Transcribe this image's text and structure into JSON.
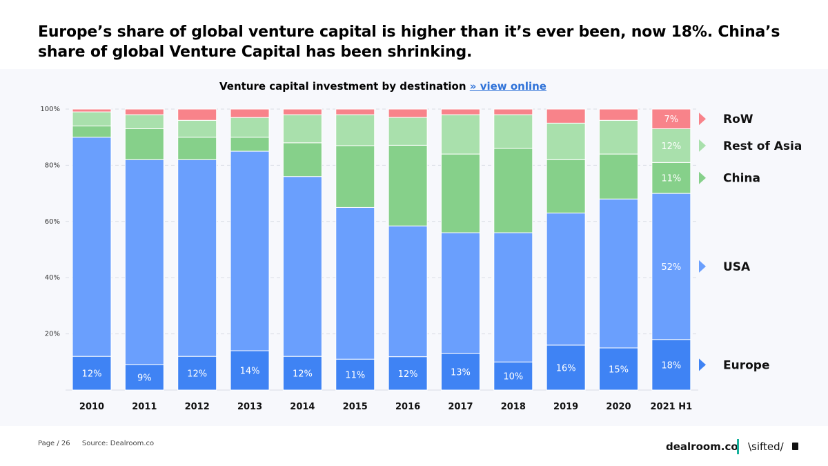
{
  "headline": "Europe’s share of global venture capital is higher than it’s ever been, now 18%. China’s share of global Venture Capital has been shrinking.",
  "subtitle": {
    "text": "Venture capital investment by destination",
    "link": "» view online"
  },
  "footer": {
    "page": "Page / 26",
    "source": "Source: Dealroom.co"
  },
  "brands": {
    "dealroom": "dealroom.co",
    "sifted": "\\sifted/"
  },
  "colors": {
    "europe": "#3f83f4",
    "usa": "#6a9ffd",
    "china": "#86d08a",
    "rest_of_asia": "#a9e0ac",
    "row": "#f8838a",
    "accent": "#17b19c",
    "link": "#2f72d8"
  },
  "chart_data": {
    "type": "bar",
    "stacked": true,
    "title": "Venture capital investment by destination",
    "xlabel": "",
    "ylabel": "",
    "ylim": [
      0,
      100
    ],
    "y_ticks": [
      "100%",
      "80%",
      "60%",
      "40%",
      "20%"
    ],
    "grid": true,
    "legend_position": "right",
    "categories": [
      "2010",
      "2011",
      "2012",
      "2013",
      "2014",
      "2015",
      "2016",
      "2017",
      "2018",
      "2019",
      "2020",
      "2021 H1"
    ],
    "series": [
      {
        "name": "Europe",
        "color": "#3f83f4",
        "values": [
          12,
          9,
          12,
          14,
          12,
          11,
          12,
          13,
          10,
          16,
          15,
          18
        ],
        "labels": [
          "12%",
          "9%",
          "12%",
          "14%",
          "12%",
          "11%",
          "12%",
          "13%",
          "10%",
          "16%",
          "15%",
          "18%"
        ]
      },
      {
        "name": "USA",
        "color": "#6a9ffd",
        "values": [
          78,
          73,
          70,
          71,
          64,
          54,
          47,
          43,
          46,
          47,
          53,
          52
        ],
        "labels": [
          "",
          "",
          "",
          "",
          "",
          "",
          "",
          "",
          "",
          "",
          "",
          "52%"
        ]
      },
      {
        "name": "China",
        "color": "#86d08a",
        "values": [
          4,
          11,
          8,
          5,
          12,
          22,
          29,
          28,
          30,
          19,
          16,
          11
        ],
        "labels": [
          "",
          "",
          "",
          "",
          "",
          "",
          "",
          "",
          "",
          "",
          "",
          "11%"
        ]
      },
      {
        "name": "Rest of Asia",
        "color": "#a9e0ac",
        "values": [
          5,
          5,
          6,
          7,
          10,
          11,
          10,
          14,
          12,
          13,
          12,
          12
        ],
        "labels": [
          "",
          "",
          "",
          "",
          "",
          "",
          "",
          "",
          "",
          "",
          "",
          "12%"
        ]
      },
      {
        "name": "RoW",
        "color": "#f8838a",
        "values": [
          1,
          2,
          4,
          3,
          2,
          2,
          3,
          2,
          2,
          5,
          4,
          7
        ],
        "labels": [
          "",
          "",
          "",
          "",
          "",
          "",
          "",
          "",
          "",
          "",
          "",
          "7%"
        ]
      }
    ]
  }
}
